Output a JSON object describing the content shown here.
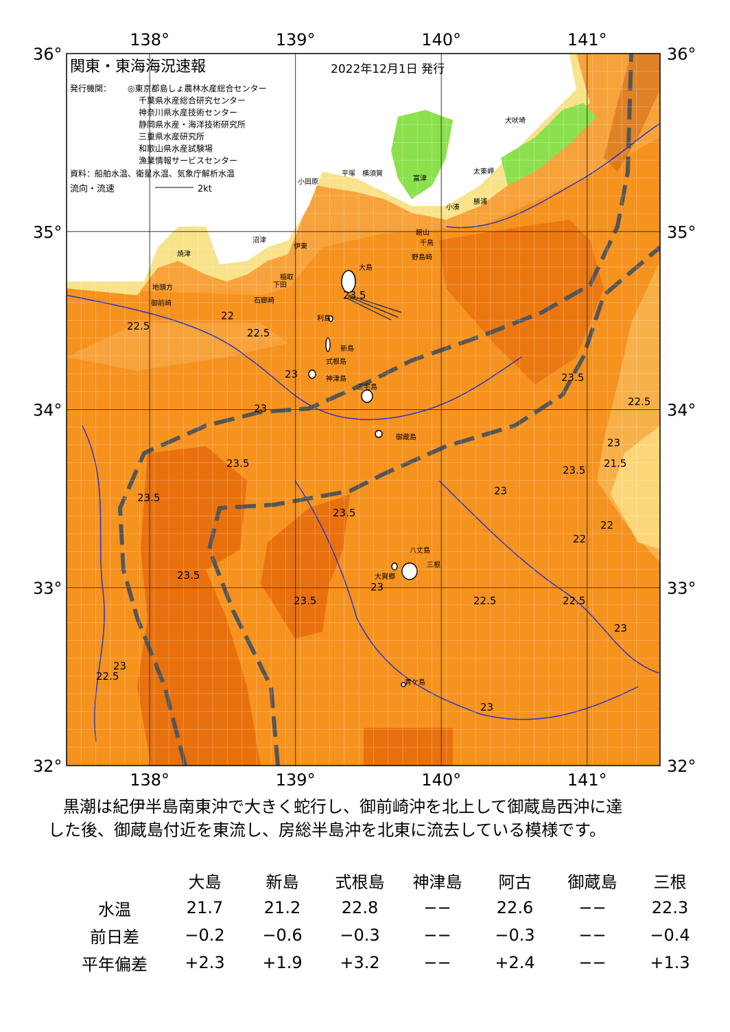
{
  "header": {
    "title": "関東・東海海況速報",
    "date": "2022年12月1日 発行",
    "issuer_label": "発行機関：",
    "issuers": [
      "◎東京都島しょ農林水産総合センター",
      "千葉県水産総合研究センター",
      "神奈川県水産技術センター",
      "静岡県水産・海洋技術研究所",
      "三重県水産研究所",
      "和歌山県水産試験場",
      "漁業情報サービスセンター"
    ],
    "source": "資料：船舶水温、衛星水温、気象庁解析水温",
    "flow_label": "流向・流速",
    "flow_scale": "2kt"
  },
  "map": {
    "lonlim": [
      137.43,
      141.5
    ],
    "latlim": [
      32,
      36
    ],
    "lon_ticks": [
      {
        "value": 138,
        "label": "138°"
      },
      {
        "value": 139,
        "label": "139°"
      },
      {
        "value": 140,
        "label": "140°"
      },
      {
        "value": 141,
        "label": "141°"
      }
    ],
    "lat_ticks": [
      {
        "value": 36,
        "label": "36°"
      },
      {
        "value": 35,
        "label": "35°"
      },
      {
        "value": 34,
        "label": "34°"
      },
      {
        "value": 33,
        "label": "33°"
      },
      {
        "value": 32,
        "label": "32°"
      }
    ],
    "places": [
      "大島",
      "利島",
      "新島",
      "式根島",
      "神津島",
      "三宅島",
      "御蔵島",
      "八丈島",
      "三根",
      "大賀郷",
      "青ケ島",
      "小田原",
      "平塚",
      "横須賀",
      "富津",
      "館山",
      "千鳥",
      "野島崎",
      "太東岬",
      "犬吠埼",
      "勝浦",
      "小湊",
      "沼津",
      "伊東",
      "稲取",
      "下田",
      "石廊崎",
      "焼津",
      "御前崎",
      "地頭方"
    ],
    "isotherms": [
      "22.5",
      "22",
      "22.5",
      "23",
      "23.5",
      "23.5",
      "23.5",
      "23",
      "23.5",
      "23.5",
      "23",
      "22.5",
      "22.5",
      "22",
      "22.5",
      "23",
      "23",
      "23.5",
      "23",
      "23",
      "22.5",
      "21.5",
      "22",
      "23.5",
      "23.5",
      "23"
    ]
  },
  "description": [
    "黒潮は紀伊半島南東沖で大きく蛇行し、御前崎沖を北上して御蔵島西沖に達",
    "した後、御蔵島付近を東流し、房総半島沖を北東に流去している模様です。"
  ],
  "table": {
    "columns": [
      "大島",
      "新島",
      "式根島",
      "神津島",
      "阿古",
      "御蔵島",
      "三根"
    ],
    "rows": [
      {
        "label": "水温",
        "values": [
          "21.7",
          "21.2",
          "22.8",
          "−−",
          "22.6",
          "−−",
          "22.3"
        ]
      },
      {
        "label": "前日差",
        "values": [
          "−0.2",
          "−0.6",
          "−0.3",
          "−−",
          "−0.3",
          "−−",
          "−0.4"
        ]
      },
      {
        "label": "平年偏差",
        "values": [
          "+2.3",
          "+1.9",
          "+3.2",
          "−−",
          "+2.4",
          "−−",
          "+1.3"
        ]
      }
    ]
  }
}
